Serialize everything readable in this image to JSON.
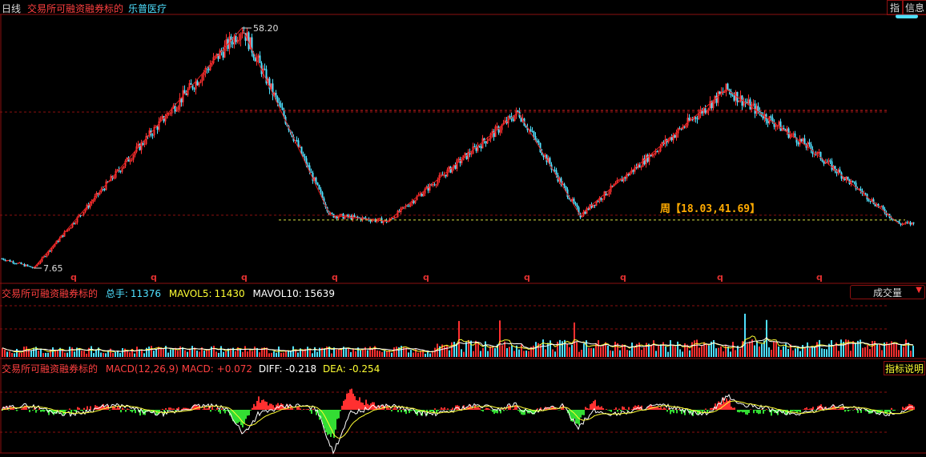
{
  "header": {
    "period": "日线",
    "tag": "交易所可融资融券标的",
    "stock_name": "乐普医疗",
    "btn_index": "指",
    "btn_info": "信息"
  },
  "colors": {
    "up": "#ff3030",
    "down": "#4fe0ff",
    "grid": "#8c1010",
    "ma5": "#ffff33",
    "ma10": "#ffffff",
    "dif": "#ffffff",
    "dea": "#ffff33",
    "zigzag": "#e02020",
    "support": "#d8e040"
  },
  "main_chart": {
    "high_label": "58.20",
    "low_label": "7.65",
    "range_label": "周【18.03,41.69】",
    "q_marker": "q"
  },
  "volume_panel": {
    "tag": "交易所可融资融券标的",
    "total_label": "总手:",
    "total_value": "11376",
    "ma5_label": "MAVOL5:",
    "ma5_value": "11430",
    "ma10_label": "MAVOL10:",
    "ma10_value": "15639",
    "dropdown_label": "成交量"
  },
  "macd_panel": {
    "tag": "交易所可融资融券标的",
    "title": "MACD(12,26,9) MACD:",
    "macd_value": "+0.072",
    "dif_label": "DIFF:",
    "dif_value": "-0.218",
    "dea_label": "DEA:",
    "dea_value": "-0.254",
    "help_button": "指标说明"
  },
  "chart_data": {
    "type": "candlestick",
    "price_range_shown": [
      7.65,
      58.2
    ],
    "zigzag_pivots": [
      {
        "bar": 40,
        "price": 7.65
      },
      {
        "bar": 300,
        "price": 58.2
      },
      {
        "bar": 410,
        "price": 18.8
      },
      {
        "bar": 482,
        "price": 17.5
      },
      {
        "bar": 645,
        "price": 40.5
      },
      {
        "bar": 722,
        "price": 18.8
      },
      {
        "bar": 905,
        "price": 45.3
      },
      {
        "bar": 1008,
        "price": 33.0
      },
      {
        "bar": 1120,
        "price": 17.0
      }
    ],
    "support_level": 18.8,
    "resistance_level": 40.5,
    "weekly_range": [
      18.03,
      41.69
    ],
    "volume": {
      "latest": 11376,
      "mavol5": 11430,
      "mavol10": 15639
    },
    "macd": {
      "params": [
        12,
        26,
        9
      ],
      "macd": 0.072,
      "diff": -0.218,
      "dea": -0.254
    }
  }
}
